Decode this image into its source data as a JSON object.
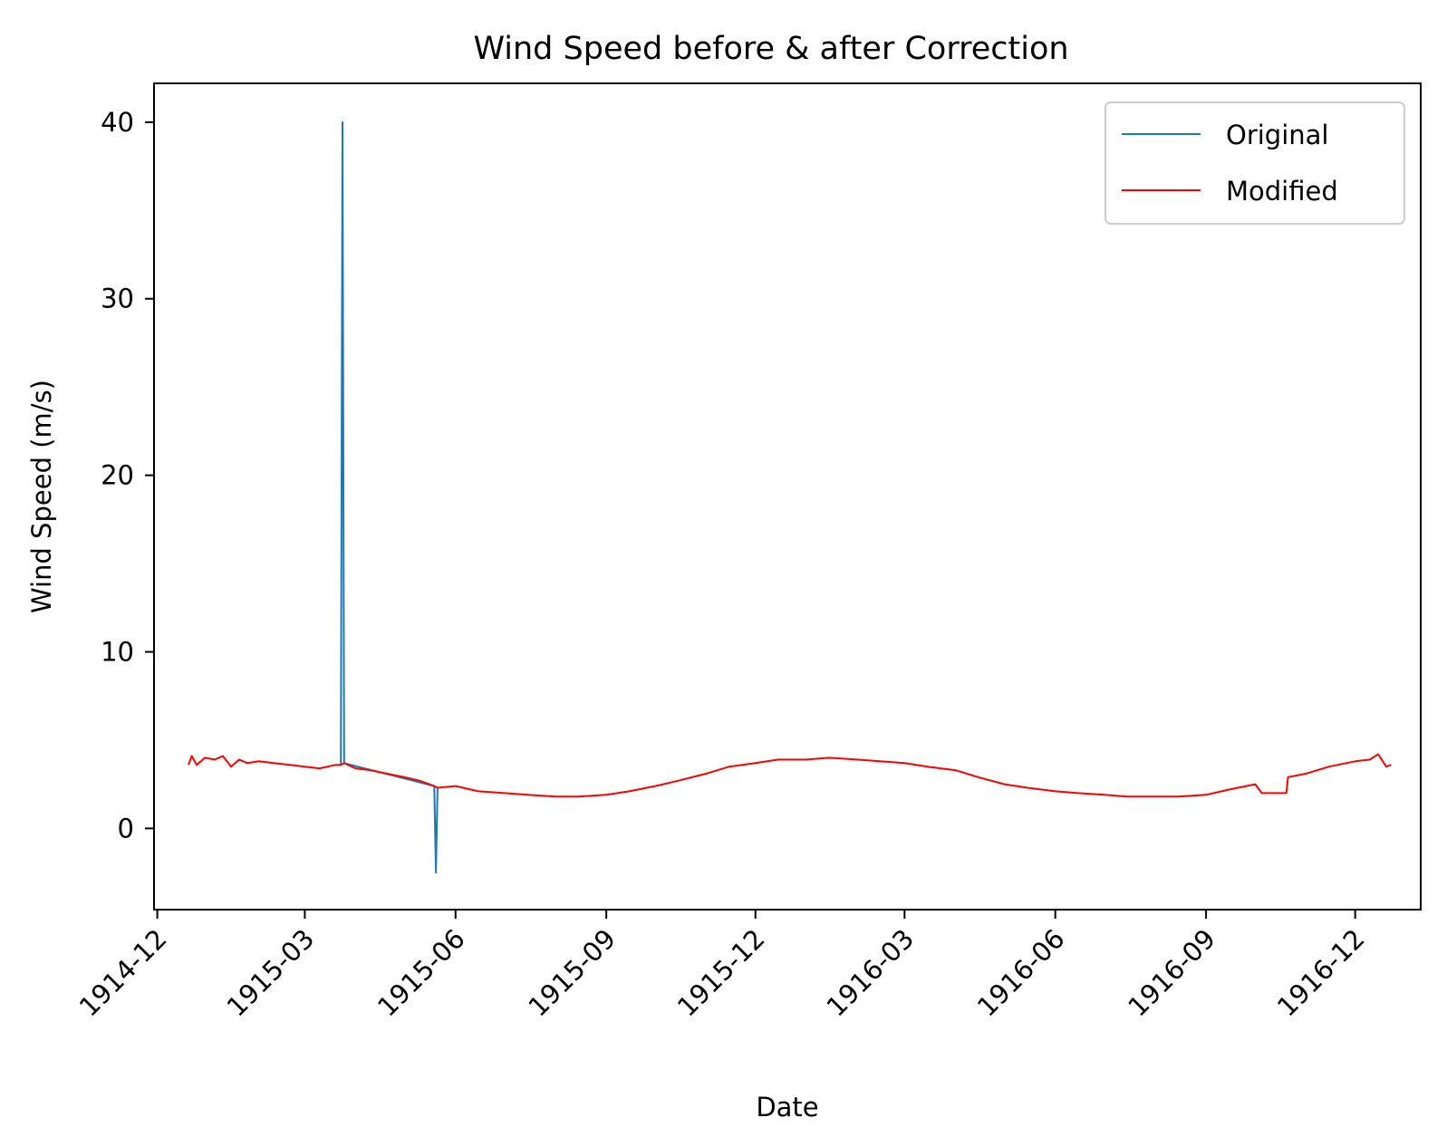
{
  "chart_data": {
    "type": "line",
    "title": "Wind Speed before & after Correction",
    "xlabel": "Date",
    "ylabel": "Wind Speed (m/s)",
    "xlim": [
      "1914-11-29",
      "1917-01-10"
    ],
    "ylim": [
      -4.6,
      42.2
    ],
    "x_ticks": [
      "1914-12",
      "1915-03",
      "1915-06",
      "1915-09",
      "1915-12",
      "1916-03",
      "1916-06",
      "1916-09",
      "1916-12"
    ],
    "y_ticks": [
      0,
      10,
      20,
      30,
      40
    ],
    "legend": {
      "position": "upper-right",
      "entries": [
        "Original",
        "Modified"
      ]
    },
    "grid": false,
    "series": [
      {
        "name": "Original",
        "color": "#1f77b4",
        "points": [
          [
            "1915-03-23",
            3.6
          ],
          [
            "1915-03-24",
            40.0
          ],
          [
            "1915-03-25",
            3.7
          ],
          [
            "1915-05-19",
            2.4
          ],
          [
            "1915-05-20",
            -2.5
          ],
          [
            "1915-05-21",
            2.3
          ]
        ]
      },
      {
        "name": "Modified",
        "color": "#ff0000",
        "points": [
          [
            "1914-12-20",
            3.6
          ],
          [
            "1914-12-22",
            4.1
          ],
          [
            "1914-12-25",
            3.6
          ],
          [
            "1914-12-30",
            4.0
          ],
          [
            "1915-01-05",
            3.9
          ],
          [
            "1915-01-10",
            4.1
          ],
          [
            "1915-01-15",
            3.5
          ],
          [
            "1915-01-20",
            3.9
          ],
          [
            "1915-01-25",
            3.7
          ],
          [
            "1915-02-01",
            3.8
          ],
          [
            "1915-02-10",
            3.7
          ],
          [
            "1915-02-20",
            3.6
          ],
          [
            "1915-03-01",
            3.5
          ],
          [
            "1915-03-10",
            3.4
          ],
          [
            "1915-03-20",
            3.6
          ],
          [
            "1915-03-23",
            3.6
          ],
          [
            "1915-03-25",
            3.7
          ],
          [
            "1915-04-01",
            3.4
          ],
          [
            "1915-04-10",
            3.3
          ],
          [
            "1915-04-20",
            3.1
          ],
          [
            "1915-05-01",
            2.9
          ],
          [
            "1915-05-10",
            2.7
          ],
          [
            "1915-05-19",
            2.4
          ],
          [
            "1915-05-21",
            2.3
          ],
          [
            "1915-06-01",
            2.4
          ],
          [
            "1915-06-15",
            2.1
          ],
          [
            "1915-07-01",
            2.0
          ],
          [
            "1915-07-15",
            1.9
          ],
          [
            "1915-08-01",
            1.8
          ],
          [
            "1915-08-15",
            1.8
          ],
          [
            "1915-09-01",
            1.9
          ],
          [
            "1915-09-15",
            2.1
          ],
          [
            "1915-10-01",
            2.4
          ],
          [
            "1915-10-15",
            2.7
          ],
          [
            "1915-11-01",
            3.1
          ],
          [
            "1915-11-15",
            3.5
          ],
          [
            "1915-12-01",
            3.7
          ],
          [
            "1915-12-15",
            3.9
          ],
          [
            "1916-01-01",
            3.9
          ],
          [
            "1916-01-15",
            4.0
          ],
          [
            "1916-02-01",
            3.9
          ],
          [
            "1916-02-15",
            3.8
          ],
          [
            "1916-03-01",
            3.7
          ],
          [
            "1916-03-15",
            3.5
          ],
          [
            "1916-04-01",
            3.3
          ],
          [
            "1916-04-15",
            2.9
          ],
          [
            "1916-05-01",
            2.5
          ],
          [
            "1916-05-15",
            2.3
          ],
          [
            "1916-06-01",
            2.1
          ],
          [
            "1916-06-15",
            2.0
          ],
          [
            "1916-07-01",
            1.9
          ],
          [
            "1916-07-15",
            1.8
          ],
          [
            "1916-08-01",
            1.8
          ],
          [
            "1916-08-15",
            1.8
          ],
          [
            "1916-09-01",
            1.9
          ],
          [
            "1916-09-15",
            2.2
          ],
          [
            "1916-10-01",
            2.5
          ],
          [
            "1916-10-05",
            2.0
          ],
          [
            "1916-10-20",
            2.0
          ],
          [
            "1916-10-21",
            2.9
          ],
          [
            "1916-11-01",
            3.1
          ],
          [
            "1916-11-15",
            3.5
          ],
          [
            "1916-12-01",
            3.8
          ],
          [
            "1916-12-10",
            3.9
          ],
          [
            "1916-12-15",
            4.2
          ],
          [
            "1916-12-20",
            3.5
          ],
          [
            "1916-12-23",
            3.6
          ]
        ]
      }
    ]
  }
}
